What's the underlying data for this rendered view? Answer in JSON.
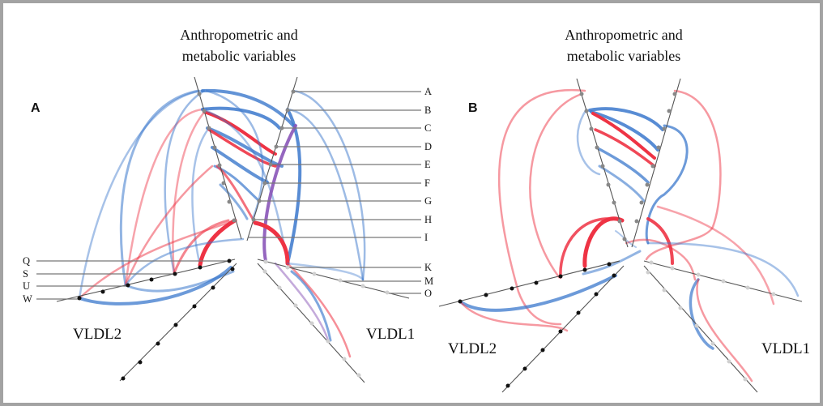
{
  "panels": [
    {
      "id": "A",
      "label": "A",
      "title_line1": "Anthropometric and",
      "title_line2": "metabolic variables",
      "left_axis_label": "VLDL2",
      "right_axis_label": "VLDL1",
      "variable_letters": [
        "A",
        "B",
        "C",
        "D",
        "E",
        "F",
        "G",
        "H",
        "I",
        "K",
        "M",
        "O"
      ],
      "left_letters": [
        "Q",
        "S",
        "U",
        "W"
      ]
    },
    {
      "id": "B",
      "label": "B",
      "title_line1": "Anthropometric and",
      "title_line2": "metabolic variables",
      "left_axis_label": "VLDL2",
      "right_axis_label": "VLDL1"
    }
  ],
  "colors": {
    "positive": "#ee3344",
    "negative": "#3b78cc",
    "frame": "#a3a3a3"
  }
}
